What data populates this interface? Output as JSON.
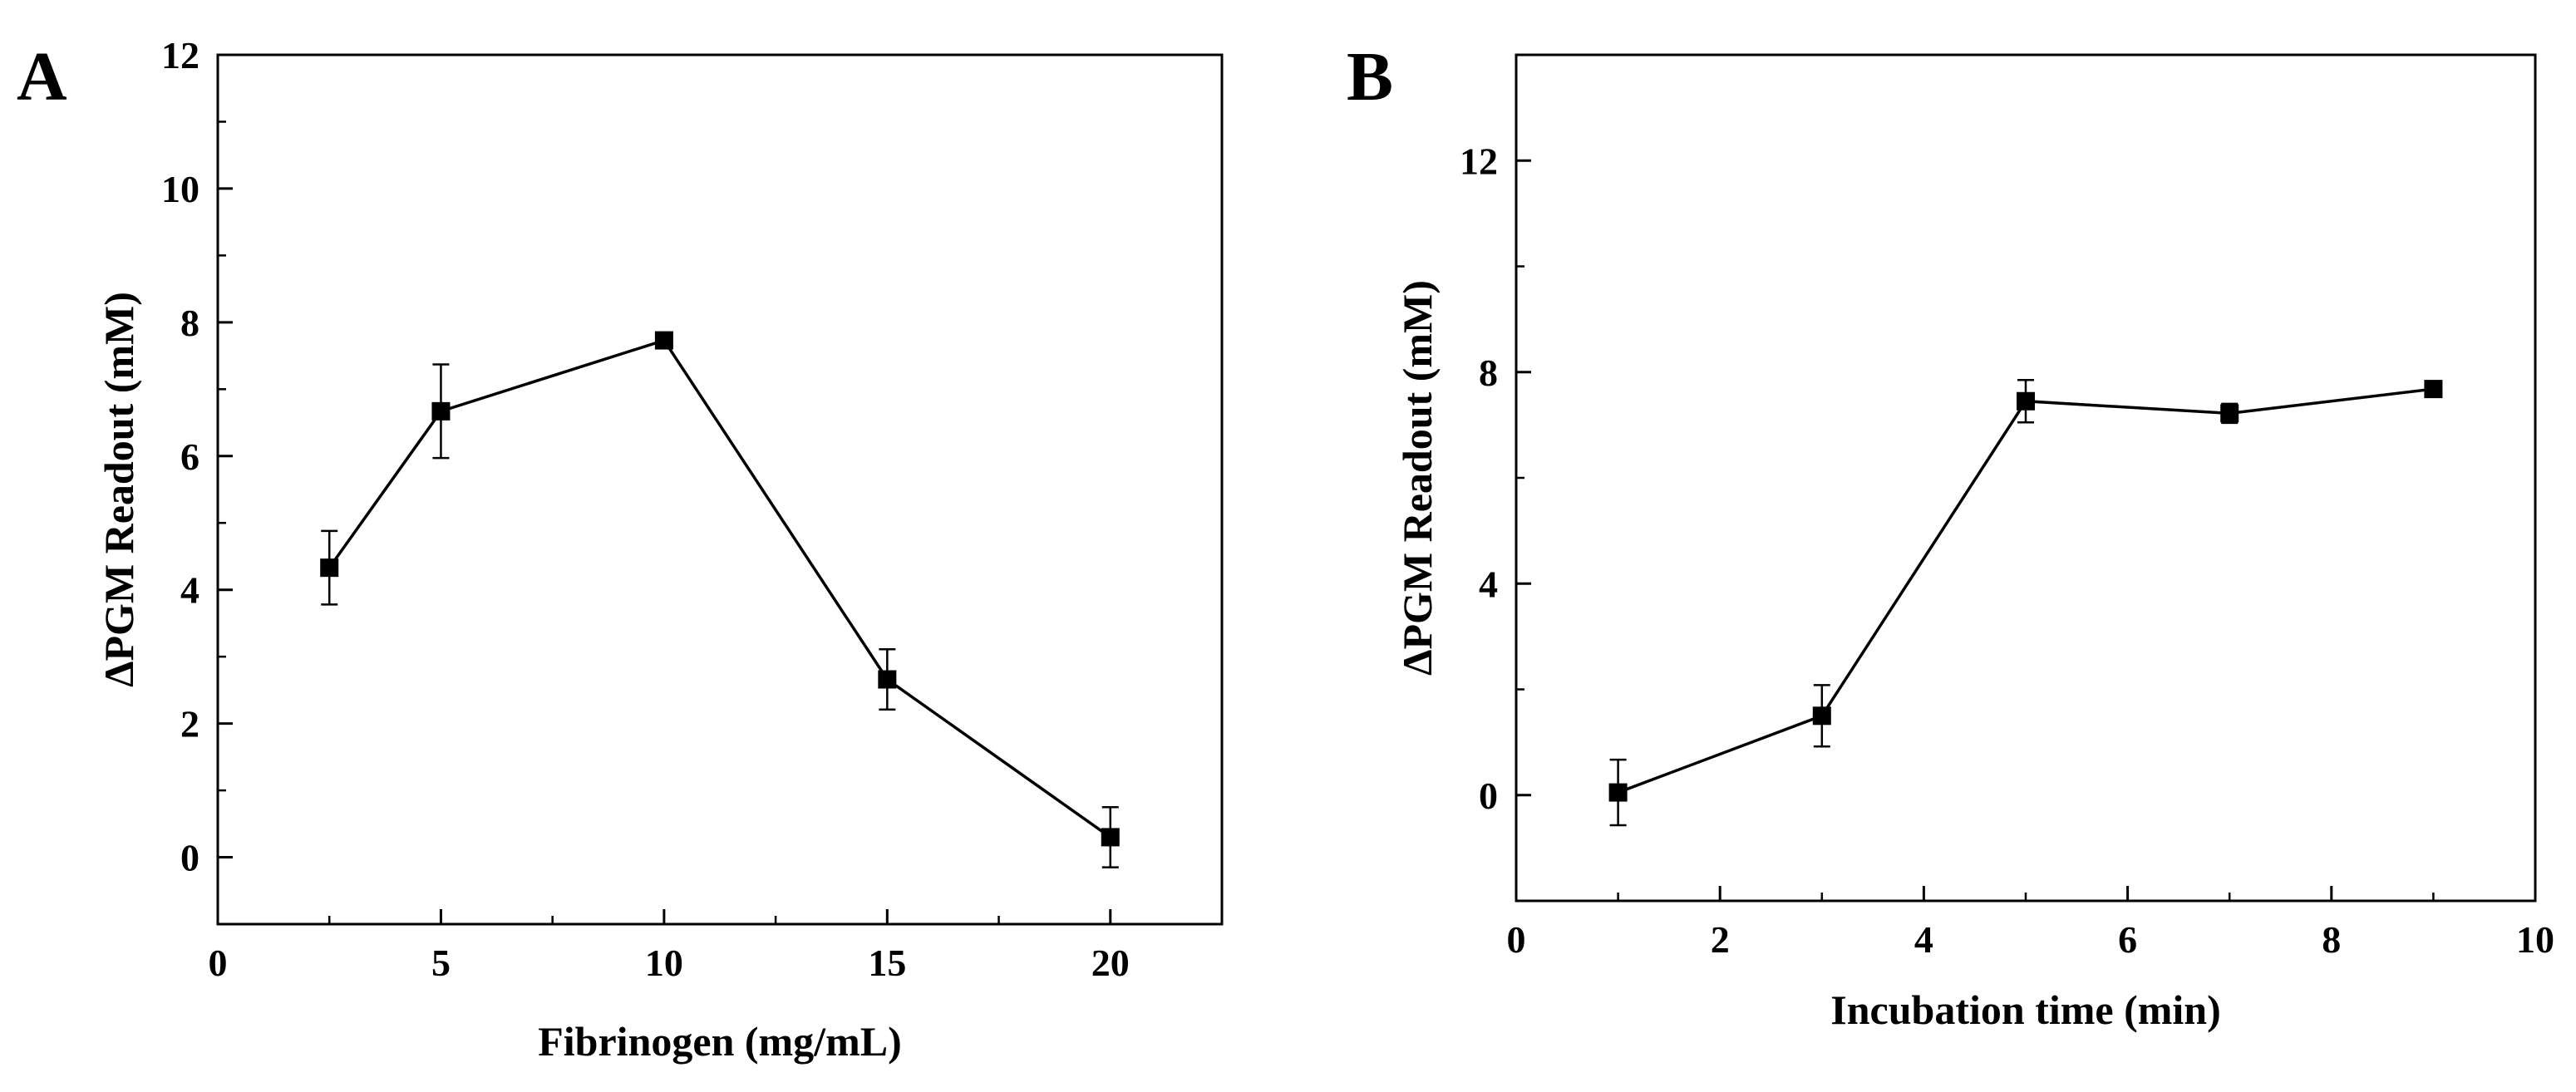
{
  "chart_data": [
    {
      "panel": "A",
      "type": "line",
      "xlabel": "Fibrinogen (mg/mL)",
      "ylabel": "ΔPGM Readout (mM)",
      "xlim": [
        0,
        22.5
      ],
      "ylim": [
        -1,
        12
      ],
      "xticks": [
        0,
        5,
        10,
        15,
        20
      ],
      "yticks": [
        0,
        2,
        4,
        6,
        8,
        10,
        12
      ],
      "x_minor_step": 2.5,
      "y_minor_step": 1,
      "series": [
        {
          "name": "ΔPGM Readout",
          "x": [
            2.5,
            5,
            10,
            15,
            20
          ],
          "y": [
            4.33,
            6.67,
            7.73,
            2.66,
            0.3
          ],
          "error": [
            0.55,
            0.7,
            0.05,
            0.45,
            0.45
          ]
        }
      ]
    },
    {
      "panel": "B",
      "type": "line",
      "xlabel": "Incubation time (min)",
      "ylabel": "ΔPGM Readout (mM)",
      "xlim": [
        0,
        10
      ],
      "ylim": [
        -2,
        14
      ],
      "xticks": [
        0,
        2,
        4,
        6,
        8,
        10
      ],
      "yticks": [
        0,
        4,
        8,
        12
      ],
      "x_minor_step": 1,
      "y_minor_step": 2,
      "series": [
        {
          "name": "ΔPGM Readout",
          "x": [
            1,
            3,
            5,
            7,
            9
          ],
          "y": [
            0.05,
            1.5,
            7.45,
            7.22,
            7.68
          ],
          "error": [
            0.62,
            0.58,
            0.4,
            0.18,
            0.06
          ]
        }
      ]
    }
  ]
}
